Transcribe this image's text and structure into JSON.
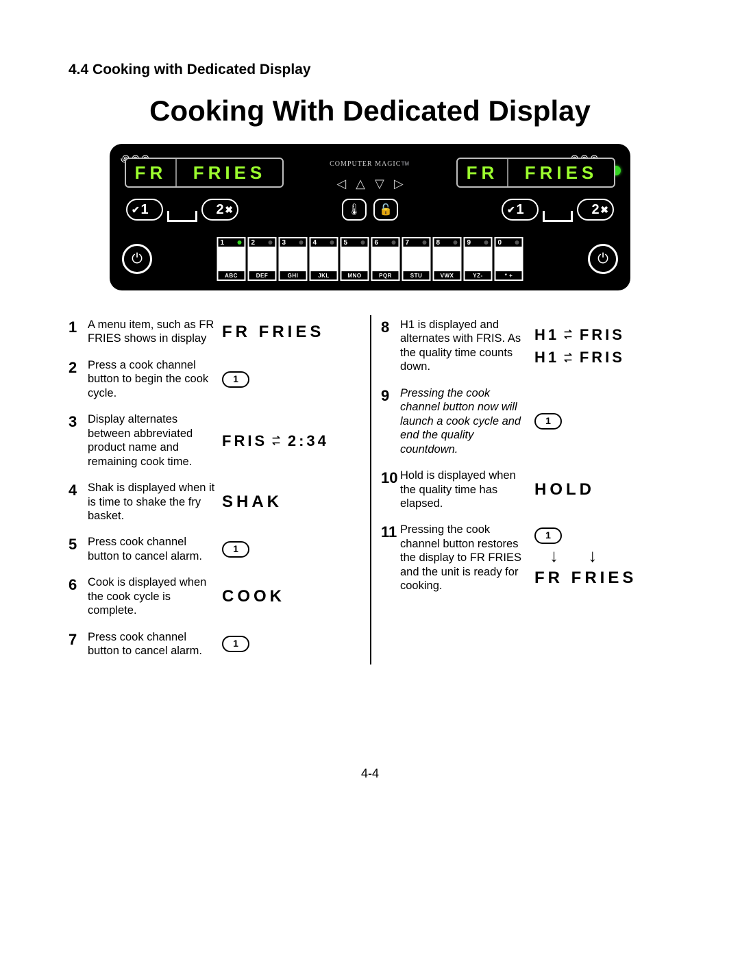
{
  "section_heading": "4.4   Cooking with Dedicated Display",
  "main_title": "Cooking With Dedicated Display",
  "page_number": "4-4",
  "panel": {
    "brand": "COMPUTER MAGIC™️",
    "lcd_left_1": "FR",
    "lcd_left_2": "FRIES",
    "lcd_right_1": "FR",
    "lcd_right_2": "FRIES",
    "dial_left_1": "1",
    "dial_left_2": "2",
    "dial_right_1": "1",
    "dial_right_2": "2",
    "arrows": [
      "◁",
      "△",
      "▽",
      "▷"
    ],
    "center_icons": [
      "🌡",
      "🔓"
    ],
    "status_led_color": "#33d421",
    "active_key_dot_color": "#33d421",
    "inactive_key_dot_color": "#555555",
    "keys": [
      {
        "num": "1",
        "label": "ABC",
        "active": true
      },
      {
        "num": "2",
        "label": "DEF",
        "active": false
      },
      {
        "num": "3",
        "label": "GHI",
        "active": false
      },
      {
        "num": "4",
        "label": "JKL",
        "active": false
      },
      {
        "num": "5",
        "label": "MNO",
        "active": false
      },
      {
        "num": "6",
        "label": "PQR",
        "active": false
      },
      {
        "num": "7",
        "label": "STU",
        "active": false
      },
      {
        "num": "8",
        "label": "VWX",
        "active": false
      },
      {
        "num": "9",
        "label": "YZ-",
        "active": false
      },
      {
        "num": "0",
        "label": "*  +",
        "active": false
      }
    ],
    "power_glyph": "⏻",
    "heat_glyph": "꩜꩜꩜"
  },
  "steps_left": [
    {
      "n": "1",
      "txt": "A menu item, such as FR FRIES shows in display",
      "gfx_type": "seg",
      "seg": "FR  FRIES"
    },
    {
      "n": "2",
      "txt": "Press a cook channel button to begin the cook cycle.",
      "gfx_type": "chip",
      "chip": "1"
    },
    {
      "n": "3",
      "txt": "Display  alternates between abbreviated product name and remaining cook time.",
      "gfx_type": "swap",
      "swap_a": "FRIS",
      "swap_b": "2:34"
    },
    {
      "n": "4",
      "txt": "Shak is displayed when it is time to shake the fry basket.",
      "gfx_type": "seg",
      "seg": "SHAK"
    },
    {
      "n": "5",
      "txt": "Press cook channel button to cancel alarm.",
      "gfx_type": "chip",
      "chip": "1"
    },
    {
      "n": "6",
      "txt": "Cook is displayed when the cook cycle is complete.",
      "gfx_type": "seg",
      "seg": "COOK"
    },
    {
      "n": "7",
      "txt": "Press cook channel button to cancel alarm.",
      "gfx_type": "chip",
      "chip": "1"
    }
  ],
  "steps_right": [
    {
      "n": "8",
      "txt": "H1 is displayed and alternates with FRIS. As the quality time counts down.",
      "gfx_type": "swap2",
      "swap_a": "H1",
      "swap_b": "FRIS"
    },
    {
      "n": "9",
      "txt": "Pressing the cook channel button now will launch a cook cycle and end the quality countdown.",
      "italic": true,
      "gfx_type": "chip",
      "chip": "1"
    },
    {
      "n": "10",
      "txt": "Hold is displayed when the quality time has elapsed.",
      "gfx_type": "seg",
      "seg": "HOLD"
    },
    {
      "n": "11",
      "txt": "Pressing the cook channel button restores the display to FR FRIES and the unit is ready for cooking.",
      "gfx_type": "chip_to_seg",
      "chip": "1",
      "seg": "FR  FRIES"
    }
  ],
  "colors": {
    "lcd_text": "#9cff2e",
    "panel_bg": "#000000",
    "text": "#000000",
    "page_bg": "#ffffff"
  }
}
